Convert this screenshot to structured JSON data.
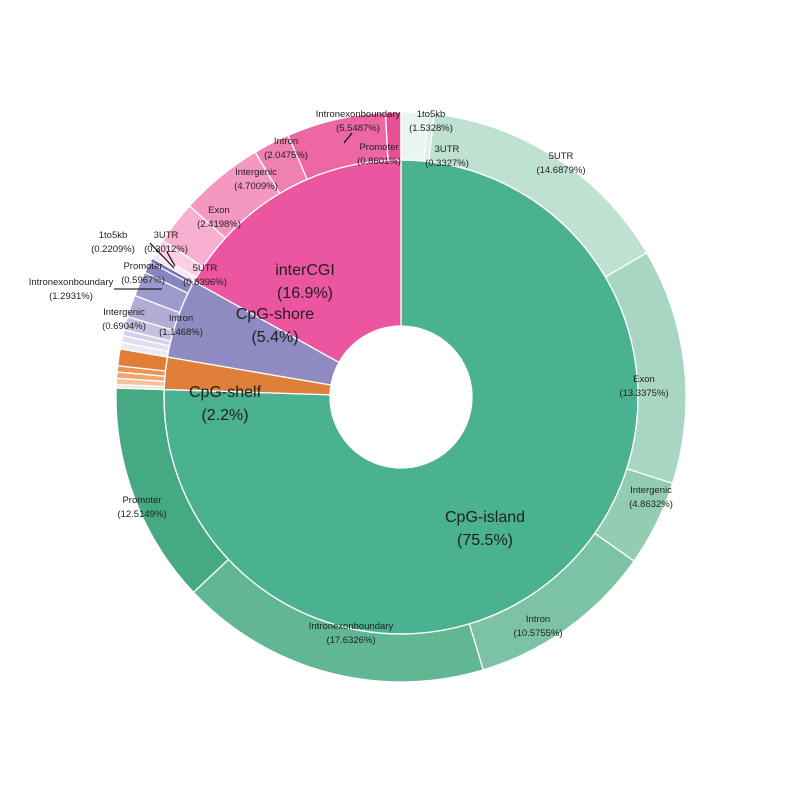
{
  "chart_data": {
    "type": "pie",
    "subtype": "nested-donut",
    "title": "",
    "inner_ring": [
      {
        "label": "CpG-island",
        "percent_label": "(75.5%)",
        "value": 75.5,
        "color": "#4ab191"
      },
      {
        "label": "CpG-shelf",
        "percent_label": "(2.2%)",
        "value": 2.2,
        "color": "#e07f3a"
      },
      {
        "label": "CpG-shore",
        "percent_label": "(5.4%)",
        "value": 5.4,
        "color": "#8f8ac1"
      },
      {
        "label": "interCGI",
        "percent_label": "(16.9%)",
        "value": 16.9,
        "color": "#ec559f"
      }
    ],
    "outer_ring": [
      {
        "parent": "CpG-island",
        "label": "3UTR",
        "percent_label": "(0.3327%)",
        "value": 0.3327,
        "color": "#dff0e8"
      },
      {
        "parent": "CpG-island",
        "label": "5UTR",
        "percent_label": "(14.6879%)",
        "value": 14.6879,
        "color": "#bfe1d1"
      },
      {
        "parent": "CpG-island",
        "label": "Exon",
        "percent_label": "(13.3375%)",
        "value": 13.3375,
        "color": "#a8d6c2"
      },
      {
        "parent": "CpG-island",
        "label": "Intergenic",
        "percent_label": "(4.8632%)",
        "value": 4.8632,
        "color": "#92ccb3"
      },
      {
        "parent": "CpG-island",
        "label": "Intron",
        "percent_label": "(10.5755%)",
        "value": 10.5755,
        "color": "#7cc2a4"
      },
      {
        "parent": "CpG-island",
        "label": "Intronexonboundary",
        "percent_label": "(17.6326%)",
        "value": 17.6326,
        "color": "#61b693"
      },
      {
        "parent": "CpG-island",
        "label": "Promoter",
        "percent_label": "(12.5149%)",
        "value": 12.5149,
        "color": "#45aa83"
      },
      {
        "parent": "CpG-shelf",
        "label": "",
        "percent_label": "",
        "value": 0.2,
        "color": "#fbe2cf"
      },
      {
        "parent": "CpG-shelf",
        "label": "",
        "percent_label": "",
        "value": 0.35,
        "color": "#f6c19b"
      },
      {
        "parent": "CpG-shelf",
        "label": "",
        "percent_label": "",
        "value": 0.35,
        "color": "#f1a56f"
      },
      {
        "parent": "CpG-shelf",
        "label": "",
        "percent_label": "",
        "value": 0.35,
        "color": "#ec9452"
      },
      {
        "parent": "CpG-shelf",
        "label": "",
        "percent_label": "",
        "value": 0.95,
        "color": "#e27d36"
      },
      {
        "parent": "CpG-shore",
        "label": "",
        "percent_label": "",
        "value": 0.35,
        "color": "#ecebf5"
      },
      {
        "parent": "CpG-shore",
        "label": "",
        "percent_label": "",
        "value": 0.35,
        "color": "#e0dfef"
      },
      {
        "parent": "CpG-shore",
        "label": "",
        "percent_label": "",
        "value": 0.3,
        "color": "#d3d1e8"
      },
      {
        "parent": "CpG-shore",
        "label": "Intergenic",
        "percent_label": "(0.6904%)",
        "value": 0.6904,
        "color": "#c3c0e0"
      },
      {
        "parent": "CpG-shore",
        "label": "Intron",
        "percent_label": "(1.1468%)",
        "value": 1.1468,
        "color": "#b1add6"
      },
      {
        "parent": "CpG-shore",
        "label": "Intronexonboundary",
        "percent_label": "(1.2931%)",
        "value": 1.2931,
        "color": "#9e99cc"
      },
      {
        "parent": "CpG-shore",
        "label": "Promoter",
        "percent_label": "(0.5967%)",
        "value": 0.5967,
        "color": "#8a85c1"
      },
      {
        "parent": "CpG-shore",
        "label": "1to5kb",
        "percent_label": "(0.2209%)",
        "value": 0.2209,
        "color": "#7a74b7"
      },
      {
        "parent": "interCGI",
        "label": "3UTR",
        "percent_label": "(0.3012%)",
        "value": 0.3012,
        "color": "#fde6f1"
      },
      {
        "parent": "interCGI",
        "label": "5UTR",
        "percent_label": "(0.8396%)",
        "value": 0.8396,
        "color": "#fbcfe3"
      },
      {
        "parent": "interCGI",
        "label": "Exon",
        "percent_label": "(2.4198%)",
        "value": 2.4198,
        "color": "#f7b0d0"
      },
      {
        "parent": "interCGI",
        "label": "Intergenic",
        "percent_label": "(4.7009%)",
        "value": 4.7009,
        "color": "#f497c1"
      },
      {
        "parent": "interCGI",
        "label": "Intron",
        "percent_label": "(2.0475%)",
        "value": 2.0475,
        "color": "#f07fb2"
      },
      {
        "parent": "interCGI",
        "label": "Intronexonboundary",
        "percent_label": "(5.5487%)",
        "value": 5.5487,
        "color": "#ec67a4"
      },
      {
        "parent": "interCGI",
        "label": "Promoter",
        "percent_label": "(0.8601%)",
        "value": 0.8601,
        "color": "#e64f96"
      },
      {
        "parent": "CpG-island",
        "label": "1to5kb",
        "percent_label": "(1.5328%)",
        "value": 1.5328,
        "color": "#e9f5ef"
      }
    ]
  }
}
